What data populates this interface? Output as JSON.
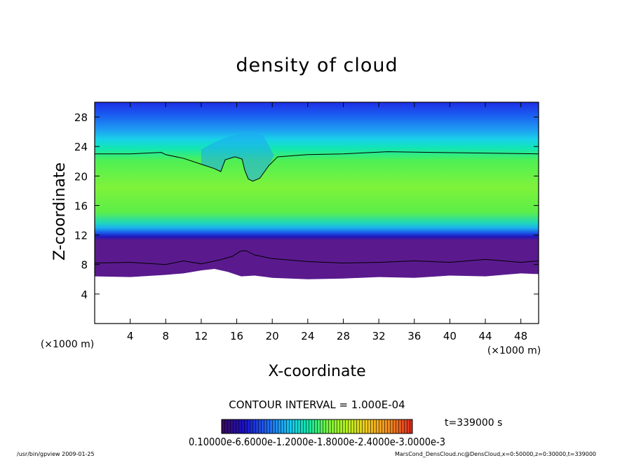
{
  "chart_data": {
    "type": "heatmap",
    "title": "density of cloud",
    "xlabel": "X-coordinate",
    "ylabel": "Z-coordinate",
    "x_unit": "(×1000 m)",
    "z_unit": "(×1000 m)",
    "xlim": [
      0,
      50
    ],
    "ylim": [
      0,
      30
    ],
    "xticks": [
      4,
      8,
      12,
      16,
      20,
      24,
      28,
      32,
      36,
      40,
      44,
      48
    ],
    "yticks": [
      4,
      8,
      12,
      16,
      20,
      24,
      28
    ],
    "contour_interval": "CONTOUR INTERVAL = 1.000E-04",
    "time": "t=339000 s",
    "colorbar_labels": "0.10000e-6.6000e-1.2000e-1.8000e-2.4000e-3.0000e-3",
    "colorbar_range": [
      0.0001,
      0.003
    ],
    "colormap": [
      "#3a0a5a",
      "#1a10c8",
      "#1f6cf0",
      "#16c8f0",
      "#10e8a0",
      "#7cf23a",
      "#b8f01c",
      "#f0c81e",
      "#f08a1e",
      "#e0281e"
    ],
    "upper_contour_z": [
      [
        0,
        23.0
      ],
      [
        4,
        23.0
      ],
      [
        7.5,
        23.2
      ],
      [
        8,
        22.9
      ],
      [
        10,
        22.4
      ],
      [
        12,
        21.6
      ],
      [
        13.5,
        21.0
      ],
      [
        14.2,
        20.6
      ],
      [
        14.7,
        22.2
      ],
      [
        15.8,
        22.6
      ],
      [
        16.6,
        22.3
      ],
      [
        16.9,
        20.8
      ],
      [
        17.3,
        19.6
      ],
      [
        17.8,
        19.3
      ],
      [
        18.6,
        19.7
      ],
      [
        19.6,
        21.4
      ],
      [
        20.6,
        22.6
      ],
      [
        24,
        22.9
      ],
      [
        28,
        23.0
      ],
      [
        33,
        23.3
      ],
      [
        38,
        23.2
      ],
      [
        44,
        23.1
      ],
      [
        50,
        23.0
      ]
    ],
    "lower_contour_z": [
      [
        0,
        8.2
      ],
      [
        4,
        8.3
      ],
      [
        8,
        8.0
      ],
      [
        10,
        8.5
      ],
      [
        12,
        8.1
      ],
      [
        14,
        8.6
      ],
      [
        15.5,
        9.1
      ],
      [
        16.4,
        9.8
      ],
      [
        17,
        9.9
      ],
      [
        18,
        9.3
      ],
      [
        20,
        8.8
      ],
      [
        24,
        8.4
      ],
      [
        28,
        8.2
      ],
      [
        32,
        8.3
      ],
      [
        36,
        8.5
      ],
      [
        40,
        8.3
      ],
      [
        44,
        8.7
      ],
      [
        48,
        8.3
      ],
      [
        50,
        8.5
      ]
    ],
    "cloud_base_z": [
      [
        0,
        6.4
      ],
      [
        4,
        6.3
      ],
      [
        8,
        6.6
      ],
      [
        10,
        6.8
      ],
      [
        12,
        7.2
      ],
      [
        13.5,
        7.4
      ],
      [
        15,
        7.0
      ],
      [
        16.5,
        6.4
      ],
      [
        18,
        6.5
      ],
      [
        20,
        6.2
      ],
      [
        24,
        6.0
      ],
      [
        28,
        6.1
      ],
      [
        32,
        6.3
      ],
      [
        36,
        6.2
      ],
      [
        40,
        6.5
      ],
      [
        44,
        6.4
      ],
      [
        48,
        6.8
      ],
      [
        50,
        6.7
      ]
    ]
  },
  "footer": {
    "left": "/usr/bin/gpview   2009-01-25",
    "right": "MarsCond_DensCloud.nc@DensCloud,x=0:50000,z=0:30000,t=339000"
  }
}
